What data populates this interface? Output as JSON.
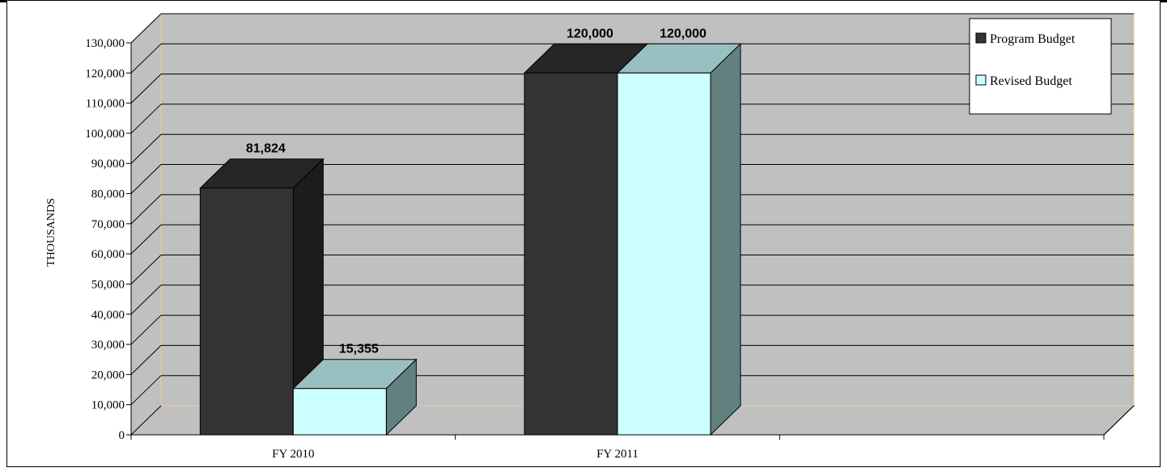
{
  "chart_data": {
    "type": "bar",
    "title": "",
    "xlabel": "",
    "ylabel": "THOUSANDS",
    "categories": [
      "FY 2010",
      "FY 2011",
      ""
    ],
    "series": [
      {
        "name": "Program Budget",
        "values": [
          81824,
          120000,
          null
        ],
        "value_labels": [
          "81,824",
          "120,000",
          ""
        ],
        "color": "#333333"
      },
      {
        "name": "Revised Budget",
        "values": [
          15355,
          120000,
          null
        ],
        "value_labels": [
          "15,355",
          "120,000",
          ""
        ],
        "color": "#ccffff"
      }
    ],
    "ylim": [
      0,
      130000
    ],
    "yticks": [
      0,
      10000,
      20000,
      30000,
      40000,
      50000,
      60000,
      70000,
      80000,
      90000,
      100000,
      110000,
      120000,
      130000
    ],
    "ytick_labels": [
      "0",
      "10,000",
      "20,000",
      "30,000",
      "40,000",
      "50,000",
      "60,000",
      "70,000",
      "80,000",
      "90,000",
      "100,000",
      "110,000",
      "120,000",
      "130,000"
    ],
    "grid": true,
    "three_d": true,
    "legend": "top-right",
    "colors": {
      "wall": "#c0c0c0",
      "floor": "#c0c0c0",
      "edge": "#f0c890"
    }
  }
}
